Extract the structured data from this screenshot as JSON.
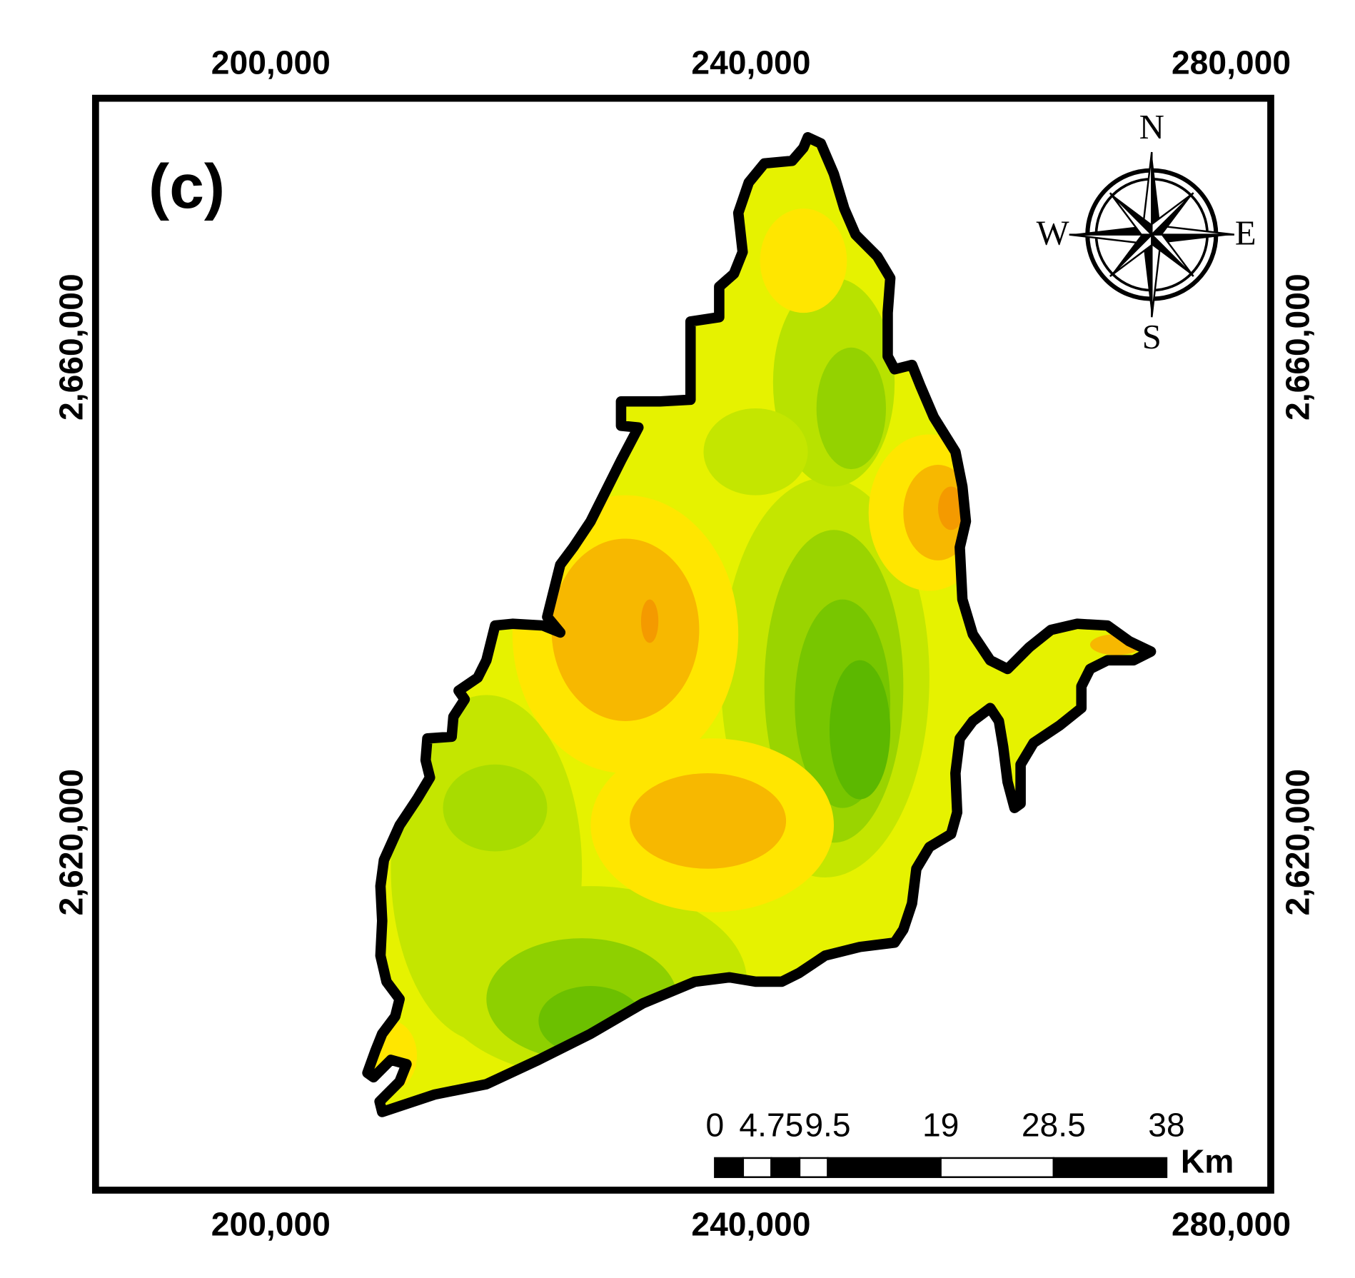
{
  "map": {
    "panel_label": "(c)",
    "xticks": [
      {
        "value": 200000,
        "label": "200,000"
      },
      {
        "value": 240000,
        "label": "240,000"
      },
      {
        "value": 280000,
        "label": "280,000"
      }
    ],
    "yticks": [
      {
        "value": 2620000,
        "label": "2,620,000"
      },
      {
        "value": 2660000,
        "label": "2,660,000"
      }
    ],
    "xlim": [
      185400,
      283300
    ],
    "ylim": [
      2591900,
      2680100
    ],
    "compass": {
      "n": "N",
      "e": "E",
      "s": "S",
      "w": "W"
    },
    "scale_bar": {
      "ticks": [
        0,
        4.75,
        9.5,
        19,
        28.5,
        38
      ],
      "unit": "Km"
    }
  }
}
